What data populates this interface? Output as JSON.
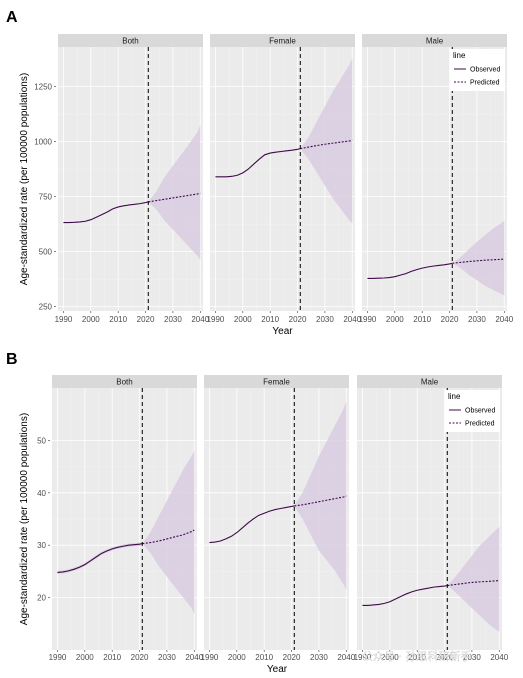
{
  "chart_data": [
    {
      "panel_label": "A",
      "type": "line",
      "ylabel": "Age-standardized rate (per 100000 populations)",
      "xlabel": "Year",
      "facets": [
        "Both",
        "Female",
        "Male"
      ],
      "x_ticks": [
        1990,
        2000,
        2010,
        2020,
        2030,
        2040
      ],
      "x_tick_labels": [
        "1990",
        "2000",
        "2010",
        "2020",
        "2030",
        "2040"
      ],
      "xlim": [
        1988,
        2041
      ],
      "y_ticks": [
        250,
        500,
        750,
        1000,
        1250
      ],
      "y_tick_labels": [
        "250",
        "500",
        "750",
        "1000",
        "1250"
      ],
      "ylim": [
        230,
        1430
      ],
      "divider_year": 2021,
      "legend": {
        "title": "line",
        "entries": [
          "Observed",
          "Predicted"
        ],
        "placement": "inside-top-right of last facet"
      },
      "grid": true,
      "series": [
        {
          "facet": "Both",
          "observed": {
            "x": [
              1990,
              1992,
              1994,
              1996,
              1998,
              2000,
              2002,
              2004,
              2006,
              2008,
              2010,
              2012,
              2014,
              2016,
              2018,
              2020,
              2021
            ],
            "y": [
              632,
              632,
              633,
              635,
              638,
              645,
              656,
              668,
              680,
              694,
              703,
              708,
              712,
              715,
              718,
              723,
              726
            ]
          },
          "predicted": {
            "x": [
              2021,
              2024,
              2027,
              2030,
              2033,
              2036,
              2039,
              2040
            ],
            "y": [
              726,
              732,
              738,
              744,
              750,
              756,
              762,
              765
            ],
            "lower": [
              726,
              690,
              640,
              600,
              560,
              520,
              480,
              462
            ],
            "upper": [
              726,
              775,
              840,
              890,
              940,
              990,
              1045,
              1075
            ]
          }
        },
        {
          "facet": "Female",
          "observed": {
            "x": [
              1990,
              1992,
              1994,
              1996,
              1998,
              2000,
              2002,
              2004,
              2006,
              2008,
              2010,
              2012,
              2014,
              2016,
              2018,
              2020,
              2021
            ],
            "y": [
              840,
              840,
              840,
              842,
              847,
              858,
              875,
              898,
              920,
              940,
              948,
              952,
              955,
              958,
              961,
              965,
              968
            ]
          },
          "predicted": {
            "x": [
              2021,
              2024,
              2027,
              2030,
              2033,
              2036,
              2039,
              2040
            ],
            "y": [
              968,
              975,
              982,
              988,
              993,
              998,
              1003,
              1006
            ],
            "lower": [
              968,
              920,
              860,
              800,
              740,
              690,
              640,
              630
            ],
            "upper": [
              968,
              1020,
              1090,
              1160,
              1230,
              1290,
              1350,
              1380
            ]
          }
        },
        {
          "facet": "Male",
          "observed": {
            "x": [
              1990,
              1992,
              1994,
              1996,
              1998,
              2000,
              2002,
              2004,
              2006,
              2008,
              2010,
              2012,
              2014,
              2016,
              2018,
              2020,
              2021
            ],
            "y": [
              378,
              378,
              379,
              380,
              382,
              386,
              393,
              400,
              410,
              418,
              425,
              430,
              434,
              437,
              440,
              444,
              447
            ]
          },
          "predicted": {
            "x": [
              2021,
              2024,
              2027,
              2030,
              2033,
              2036,
              2039,
              2040
            ],
            "y": [
              447,
              451,
              455,
              458,
              461,
              463,
              465,
              466
            ],
            "lower": [
              447,
              425,
              395,
              370,
              345,
              325,
              307,
              300
            ],
            "upper": [
              447,
              475,
              510,
              545,
              575,
              605,
              630,
              640
            ]
          }
        }
      ]
    },
    {
      "panel_label": "B",
      "type": "line",
      "ylabel": "Age-standardized rate (per 100000 populations)",
      "xlabel": "Year",
      "facets": [
        "Both",
        "Female",
        "Male"
      ],
      "x_ticks": [
        1990,
        2000,
        2010,
        2020,
        2030,
        2040
      ],
      "x_tick_labels": [
        "1990",
        "2000",
        "2010",
        "2020",
        "2030",
        "2040"
      ],
      "xlim": [
        1988,
        2041
      ],
      "y_ticks": [
        20,
        30,
        40,
        50
      ],
      "y_tick_labels": [
        "20",
        "30",
        "40",
        "50"
      ],
      "ylim": [
        10,
        60
      ],
      "divider_year": 2021,
      "legend": {
        "title": "line",
        "entries": [
          "Observed",
          "Predicted"
        ],
        "placement": "inside-top-right of last facet"
      },
      "grid": true,
      "series": [
        {
          "facet": "Both",
          "observed": {
            "x": [
              1990,
              1992,
              1994,
              1996,
              1998,
              2000,
              2002,
              2004,
              2006,
              2008,
              2010,
              2012,
              2014,
              2016,
              2018,
              2020,
              2021
            ],
            "y": [
              24.8,
              24.9,
              25.1,
              25.4,
              25.8,
              26.3,
              27.0,
              27.7,
              28.4,
              28.9,
              29.3,
              29.6,
              29.8,
              30.0,
              30.1,
              30.2,
              30.3
            ],
            "lower": [
              24.5,
              24.6,
              24.8,
              25.1,
              25.5,
              26.0,
              26.7,
              27.4,
              28.1,
              28.6,
              29.0,
              29.3,
              29.5,
              29.7,
              29.8,
              29.9,
              30.0
            ],
            "upper": [
              25.1,
              25.2,
              25.4,
              25.7,
              26.1,
              26.6,
              27.3,
              28.0,
              28.7,
              29.2,
              29.6,
              29.9,
              30.1,
              30.3,
              30.4,
              30.5,
              30.6
            ]
          },
          "predicted": {
            "x": [
              2021,
              2024,
              2027,
              2030,
              2033,
              2036,
              2039,
              2040
            ],
            "y": [
              30.3,
              30.5,
              30.8,
              31.2,
              31.6,
              32.0,
              32.6,
              32.9
            ],
            "lower": [
              30.3,
              28.5,
              26.0,
              24.0,
              22.0,
              20.0,
              18.0,
              16.8
            ],
            "upper": [
              30.3,
              32.5,
              35.5,
              38.5,
              41.5,
              44.5,
              47.0,
              48.0
            ]
          }
        },
        {
          "facet": "Female",
          "observed": {
            "x": [
              1990,
              1992,
              1994,
              1996,
              1998,
              2000,
              2002,
              2004,
              2006,
              2008,
              2010,
              2012,
              2014,
              2016,
              2018,
              2020,
              2021
            ],
            "y": [
              30.5,
              30.6,
              30.8,
              31.2,
              31.7,
              32.4,
              33.3,
              34.2,
              35.0,
              35.7,
              36.1,
              36.5,
              36.8,
              37.0,
              37.2,
              37.4,
              37.5
            ]
          },
          "predicted": {
            "x": [
              2021,
              2024,
              2027,
              2030,
              2033,
              2036,
              2039,
              2040
            ],
            "y": [
              37.5,
              37.7,
              38.0,
              38.3,
              38.6,
              38.9,
              39.2,
              39.4
            ],
            "lower": [
              37.5,
              35.0,
              32.0,
              29.0,
              27.0,
              25.0,
              22.5,
              21.5
            ],
            "upper": [
              37.5,
              40.0,
              43.5,
              47.0,
              50.0,
              53.0,
              56.0,
              57.5
            ]
          }
        },
        {
          "facet": "Male",
          "observed": {
            "x": [
              1990,
              1992,
              1994,
              1996,
              1998,
              2000,
              2002,
              2004,
              2006,
              2008,
              2010,
              2012,
              2014,
              2016,
              2018,
              2020,
              2021
            ],
            "y": [
              18.5,
              18.5,
              18.6,
              18.7,
              18.9,
              19.2,
              19.7,
              20.2,
              20.7,
              21.1,
              21.4,
              21.6,
              21.8,
              22.0,
              22.1,
              22.2,
              22.3
            ]
          },
          "predicted": {
            "x": [
              2021,
              2024,
              2027,
              2030,
              2033,
              2036,
              2039,
              2040
            ],
            "y": [
              22.3,
              22.5,
              22.7,
              22.9,
              23.0,
              23.1,
              23.2,
              23.3
            ],
            "lower": [
              22.3,
              21.0,
              19.5,
              18.0,
              16.5,
              15.0,
              13.8,
              13.5
            ],
            "upper": [
              22.3,
              24.0,
              26.0,
              28.0,
              30.0,
              31.5,
              33.0,
              33.5
            ]
          }
        }
      ]
    }
  ],
  "colors": {
    "observed_line": "#3f0a4a",
    "predicted_line": "#3f0a4a",
    "ribbon": "#d9cce0",
    "panel_bg": "#ebebeb",
    "strip_bg": "#d9d9d9",
    "grid_major": "#ffffff",
    "divider": "#000000"
  },
  "watermark": "公众号 · 孙思科研新手"
}
